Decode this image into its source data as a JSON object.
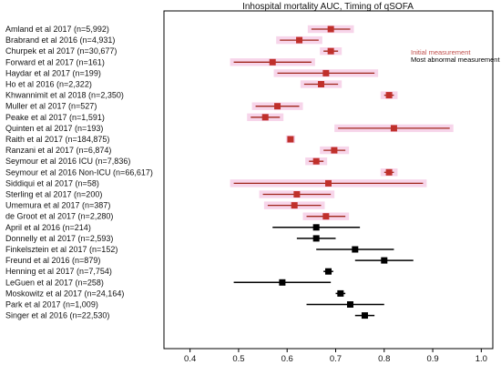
{
  "chart_data": {
    "type": "forest",
    "title": "Inhospital mortality AUC, Timing of qSOFA",
    "xlim": [
      0.35,
      1.02
    ],
    "x_ticks": [
      "0.4",
      "0.5",
      "0.6",
      "0.7",
      "0.8",
      "0.9",
      "1.0"
    ],
    "x_tick_values": [
      0.4,
      0.5,
      0.6,
      0.7,
      0.8,
      0.9,
      1.0
    ],
    "legend": {
      "placement": "top-right",
      "entries": [
        {
          "label": "Initial measurement",
          "color": "#c0504d"
        },
        {
          "label": "Most abnormal measurement",
          "color": "#000000"
        }
      ]
    },
    "colors": {
      "initial_line": "#a0261b",
      "initial_marker": "#c0302b",
      "initial_highlight": "#f7d5ea",
      "worst": "#000000"
    },
    "series": [
      {
        "name": "Initial measurement",
        "studies": [
          {
            "label": "Amland et al 2017 (n=5,992)",
            "auc": 0.69,
            "ci": [
              0.65,
              0.73
            ]
          },
          {
            "label": "Brabrand et al 2016 (n=4,931)",
            "auc": 0.625,
            "ci": [
              0.585,
              0.665
            ]
          },
          {
            "label": "Churpek et al 2017 (n=30,677)",
            "auc": 0.69,
            "ci": [
              0.675,
              0.705
            ]
          },
          {
            "label": "Forward et al 2017 (n=161)",
            "auc": 0.57,
            "ci": [
              0.49,
              0.65
            ]
          },
          {
            "label": "Haydar et al 2017 (n=199)",
            "auc": 0.68,
            "ci": [
              0.58,
              0.78
            ]
          },
          {
            "label": "Ho et al 2016 (n=2,322)",
            "auc": 0.67,
            "ci": [
              0.635,
              0.705
            ]
          },
          {
            "label": "Khwannimit et al 2018 (n=2,350)",
            "auc": 0.81,
            "ci": [
              0.8,
              0.82
            ]
          },
          {
            "label": "Muller et al 2017 (n=527)",
            "auc": 0.58,
            "ci": [
              0.535,
              0.625
            ]
          },
          {
            "label": "Peake et al 2017 (n=1,591)",
            "auc": 0.555,
            "ci": [
              0.525,
              0.585
            ]
          },
          {
            "label": "Quinten et al 2017 (n=193)",
            "auc": 0.82,
            "ci": [
              0.705,
              0.935
            ]
          },
          {
            "label": "Raith et al 2017 (n=184,875)",
            "auc": 0.607,
            "ci": [
              0.605,
              0.609
            ]
          },
          {
            "label": "Ranzani et al 2017 (n=6,874)",
            "auc": 0.697,
            "ci": [
              0.675,
              0.72
            ]
          },
          {
            "label": "Seymour et al 2016 ICU (n=7,836)",
            "auc": 0.66,
            "ci": [
              0.645,
              0.675
            ]
          },
          {
            "label": "Seymour et al 2016 Non-ICU (n=66,617)",
            "auc": 0.81,
            "ci": [
              0.8,
              0.82
            ]
          },
          {
            "label": "Siddiqui et al 2017 (n=58)",
            "auc": 0.685,
            "ci": [
              0.49,
              0.88
            ]
          },
          {
            "label": "Sterling et al 2017 (n=200)",
            "auc": 0.62,
            "ci": [
              0.55,
              0.69
            ]
          },
          {
            "label": "Umemura et al 2017 (n=387)",
            "auc": 0.615,
            "ci": [
              0.56,
              0.67
            ]
          },
          {
            "label": "de Groot et al 2017 (n=2,280)",
            "auc": 0.68,
            "ci": [
              0.64,
              0.72
            ]
          }
        ]
      },
      {
        "name": "Most abnormal measurement",
        "studies": [
          {
            "label": "April et al 2016 (n=214)",
            "auc": 0.66,
            "ci": [
              0.57,
              0.75
            ]
          },
          {
            "label": "Donnelly et al 2017 (n=2,593)",
            "auc": 0.66,
            "ci": [
              0.62,
              0.7
            ]
          },
          {
            "label": "Finkelsztein et al 2017 (n=152)",
            "auc": 0.74,
            "ci": [
              0.66,
              0.82
            ]
          },
          {
            "label": "Freund et al 2016 (n=879)",
            "auc": 0.8,
            "ci": [
              0.74,
              0.86
            ]
          },
          {
            "label": "Henning et al 2017 (n=7,754)",
            "auc": 0.685,
            "ci": [
              0.675,
              0.695
            ]
          },
          {
            "label": "LeGuen et al 2017 (n=258)",
            "auc": 0.59,
            "ci": [
              0.49,
              0.69
            ]
          },
          {
            "label": "Moskowitz et al 2017 (n=24,164)",
            "auc": 0.71,
            "ci": [
              0.7,
              0.72
            ]
          },
          {
            "label": "Park et al 2017 (n=1,009)",
            "auc": 0.73,
            "ci": [
              0.64,
              0.8
            ]
          },
          {
            "label": "Singer et al 2016 (n=22,530)",
            "auc": 0.76,
            "ci": [
              0.74,
              0.78
            ]
          }
        ]
      }
    ]
  }
}
